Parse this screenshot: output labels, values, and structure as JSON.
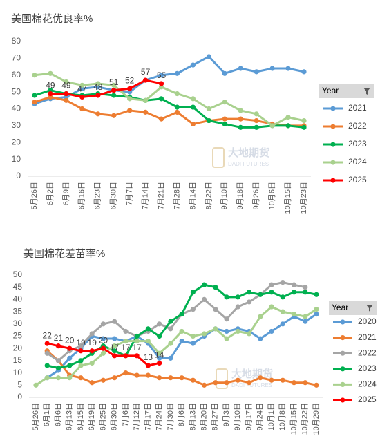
{
  "chart_data": [
    {
      "type": "line",
      "title": "美国棉花优良率%",
      "legend_title": "Year",
      "watermark": {
        "cn": "大地期货",
        "en": "DADI FUTURES"
      },
      "categories": [
        "5月26日",
        "6月2日",
        "6月9日",
        "6月16日",
        "6月23日",
        "6月30日",
        "7月7日",
        "7月14日",
        "7月21日",
        "7月28日",
        "8月14日",
        "8月22日",
        "9月10日",
        "9月18日",
        "9月26日",
        "10月6日",
        "10月15日",
        "10月23日"
      ],
      "ylim": [
        0,
        80
      ],
      "yticks": [
        0,
        10,
        20,
        30,
        40,
        50,
        60,
        70,
        80
      ],
      "grid": false,
      "series": [
        {
          "name": "2021",
          "color": "#5b9bd5",
          "values": [
            43,
            46,
            47,
            52,
            53,
            51,
            50,
            57,
            60,
            61,
            66,
            71,
            61,
            64,
            62,
            64,
            64,
            62
          ]
        },
        {
          "name": "2022",
          "color": "#ed7d31",
          "values": [
            44,
            47,
            45,
            40,
            37,
            36,
            39,
            38,
            34,
            38,
            31,
            33,
            34,
            34,
            33,
            31,
            30,
            30
          ]
        },
        {
          "name": "2023",
          "color": "#00b050",
          "values": [
            48,
            51,
            49,
            48,
            49,
            48,
            47,
            45,
            46,
            41,
            41,
            33,
            31,
            29,
            29,
            30,
            30,
            29
          ]
        },
        {
          "name": "2024",
          "color": "#a9d18e",
          "values": [
            60,
            61,
            56,
            54,
            55,
            54,
            46,
            45,
            53,
            49,
            46,
            40,
            44,
            39,
            37,
            30,
            35,
            33
          ]
        },
        {
          "name": "2025",
          "color": "#ff0000",
          "show_values": true,
          "values": [
            null,
            49,
            49,
            47,
            48,
            51,
            52,
            57,
            55,
            null,
            null,
            null,
            null,
            null,
            null,
            null,
            null,
            null
          ]
        }
      ]
    },
    {
      "type": "line",
      "title": "美国棉花差苗率%",
      "legend_title": "Year",
      "watermark": {
        "cn": "大地期货",
        "en": "DADI FUTURES"
      },
      "categories": [
        "5月26日",
        "6月1日",
        "6月6日",
        "6月13日",
        "6月15日",
        "6月19日",
        "6月25日",
        "6月30日",
        "7月6日",
        "7月12日",
        "7月17日",
        "7月24日",
        "7月30日",
        "8月6日",
        "8月13日",
        "8月20日",
        "8月27日",
        "9月3日",
        "9月10日",
        "9月17日",
        "9月24日",
        "10月1日",
        "10月8日",
        "10月15日",
        "10月22日",
        "10月29日"
      ],
      "ylim": [
        0,
        50
      ],
      "yticks": [
        0,
        5,
        10,
        15,
        20,
        25,
        30,
        35,
        40,
        45,
        50
      ],
      "grid": false,
      "series": [
        {
          "name": "2020",
          "color": "#5b9bd5",
          "values": [
            null,
            8,
            11,
            16,
            20,
            25,
            24,
            24,
            23,
            25,
            22,
            16,
            16,
            23,
            22,
            25,
            28,
            27,
            28,
            27,
            24,
            27,
            30,
            33,
            31,
            34
          ]
        },
        {
          "name": "2021",
          "color": "#ed7d31",
          "values": [
            null,
            19,
            15,
            9,
            8,
            6,
            7,
            8,
            10,
            9,
            9,
            8,
            8,
            8,
            7,
            5,
            6,
            6,
            7,
            6,
            8,
            7,
            7,
            6,
            6,
            5
          ]
        },
        {
          "name": "2022",
          "color": "#a5a5a5",
          "values": [
            null,
            18,
            15,
            19,
            21,
            26,
            30,
            31,
            27,
            25,
            27,
            30,
            28,
            34,
            36,
            40,
            36,
            32,
            37,
            39,
            42,
            46,
            47,
            46,
            45,
            null
          ]
        },
        {
          "name": "2023",
          "color": "#00b050",
          "values": [
            null,
            13,
            12,
            13,
            15,
            18,
            21,
            19,
            17,
            25,
            28,
            25,
            31,
            34,
            43,
            46,
            45,
            41,
            41,
            43,
            42,
            43,
            41,
            43,
            43,
            42
          ]
        },
        {
          "name": "2024",
          "color": "#a9d18e",
          "values": [
            5,
            8,
            8,
            8,
            13,
            14,
            18,
            21,
            23,
            23,
            23,
            18,
            22,
            27,
            25,
            26,
            28,
            24,
            27,
            26,
            33,
            37,
            35,
            34,
            33,
            36
          ]
        },
        {
          "name": "2025",
          "color": "#ff0000",
          "show_values": true,
          "values": [
            null,
            22,
            21,
            20,
            19,
            19,
            20,
            17,
            17,
            17,
            13,
            14,
            null,
            null,
            null,
            null,
            null,
            null,
            null,
            null,
            null,
            null,
            null,
            null,
            null,
            null
          ]
        }
      ]
    }
  ]
}
